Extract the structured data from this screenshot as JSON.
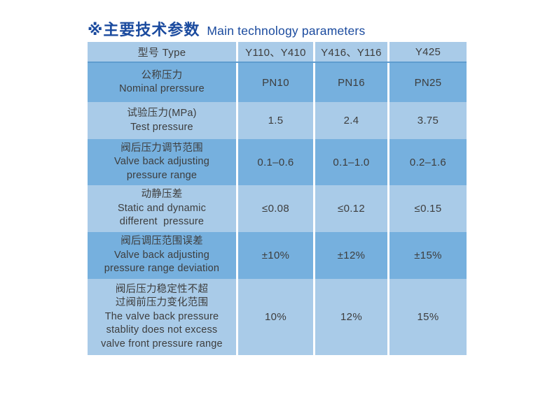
{
  "title": {
    "zh": "※主要技术参数",
    "en": "Main technology parameters",
    "color": "#1a4a9e"
  },
  "table": {
    "colors": {
      "row_light": "#a9cbe8",
      "row_dark": "#76b0de",
      "separator": "#ffffff",
      "text": "#3d3d3d",
      "header_underline": "#5e9ccf"
    },
    "header": {
      "cells": [
        "型号  Type",
        "Y110、Y410",
        "Y416、Y116",
        "Y425"
      ]
    },
    "rows": [
      {
        "shade": "dark",
        "label_lines": [
          "公称压力",
          "Nominal prerssure"
        ],
        "values": [
          "PN10",
          "PN16",
          "PN25"
        ]
      },
      {
        "shade": "light",
        "label_lines": [
          "试验压力(MPa)",
          "Test pressure"
        ],
        "values": [
          "1.5",
          "2.4",
          "3.75"
        ]
      },
      {
        "shade": "dark",
        "label_lines": [
          "阀后压力调节范围",
          "Valve back adjusting",
          "pressure range"
        ],
        "values": [
          "0.1–0.6",
          "0.1–1.0",
          "0.2–1.6"
        ]
      },
      {
        "shade": "light",
        "label_lines": [
          "动静压差",
          "Static and dynamic",
          "different  pressure"
        ],
        "values": [
          "≤0.08",
          "≤0.12",
          "≤0.15"
        ]
      },
      {
        "shade": "dark",
        "label_lines": [
          "阀后调压范围误差",
          "Valve back adjusting",
          "pressure range deviation"
        ],
        "values": [
          "±10%",
          "±12%",
          "±15%"
        ]
      },
      {
        "shade": "light",
        "label_lines": [
          "阀后压力稳定性不超",
          "过阀前压力变化范围",
          "The valve back pressure",
          "stablity does not excess",
          "valve front pressure range"
        ],
        "values": [
          "10%",
          "12%",
          "15%"
        ]
      }
    ]
  }
}
